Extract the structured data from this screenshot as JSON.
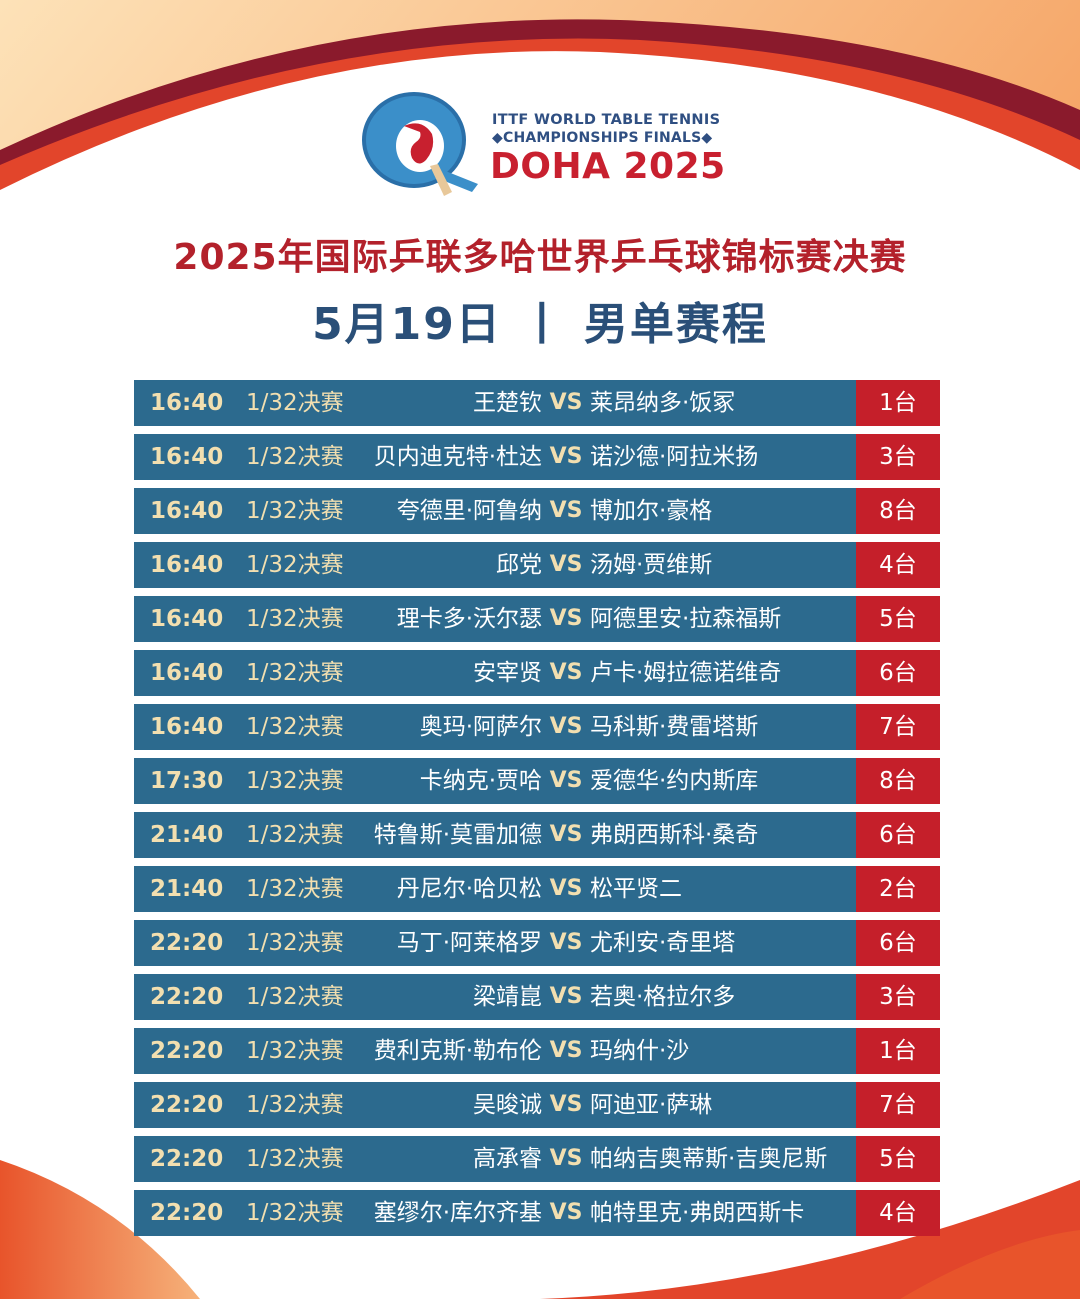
{
  "colors": {
    "accent_red": "#c51f2a",
    "row_blue": "#2c6a8e",
    "title_red": "#b3212b",
    "title_blue": "#2a4f78",
    "gold_text": "#f2dfb0"
  },
  "logo": {
    "icon": "ittf-q-logo-icon",
    "line1": "ITTF WORLD TABLE TENNIS",
    "line2": "◆CHAMPIONSHIPS FINALS◆",
    "line3": "DOHA 2025"
  },
  "title": {
    "line1": "2025年国际乒联多哈世界乒乓球锦标赛决赛",
    "date": "5月19日",
    "separator": "丨",
    "event": "男单赛程"
  },
  "schedule": [
    {
      "time": "16:40",
      "round": "1/32决赛",
      "player1": "王楚钦",
      "vs": "VS",
      "player2": "莱昂纳多·饭冢",
      "table": "1台"
    },
    {
      "time": "16:40",
      "round": "1/32决赛",
      "player1": "贝内迪克特·杜达",
      "vs": "VS",
      "player2": "诺沙德·阿拉米扬",
      "table": "3台"
    },
    {
      "time": "16:40",
      "round": "1/32决赛",
      "player1": "夸德里·阿鲁纳",
      "vs": "VS",
      "player2": "博加尔·豪格",
      "table": "8台"
    },
    {
      "time": "16:40",
      "round": "1/32决赛",
      "player1": "邱党",
      "vs": "VS",
      "player2": "汤姆·贾维斯",
      "table": "4台"
    },
    {
      "time": "16:40",
      "round": "1/32决赛",
      "player1": "理卡多·沃尔瑟",
      "vs": "VS",
      "player2": "阿德里安·拉森福斯",
      "table": "5台"
    },
    {
      "time": "16:40",
      "round": "1/32决赛",
      "player1": "安宰贤",
      "vs": "VS",
      "player2": "卢卡·姆拉德诺维奇",
      "table": "6台"
    },
    {
      "time": "16:40",
      "round": "1/32决赛",
      "player1": "奥玛·阿萨尔",
      "vs": "VS",
      "player2": "马科斯·费雷塔斯",
      "table": "7台"
    },
    {
      "time": "17:30",
      "round": "1/32决赛",
      "player1": "卡纳克·贾哈",
      "vs": "VS",
      "player2": "爱德华·约内斯库",
      "table": "8台"
    },
    {
      "time": "21:40",
      "round": "1/32决赛",
      "player1": "特鲁斯·莫雷加德",
      "vs": "VS",
      "player2": "弗朗西斯科·桑奇",
      "table": "6台"
    },
    {
      "time": "21:40",
      "round": "1/32决赛",
      "player1": "丹尼尔·哈贝松",
      "vs": "VS",
      "player2": "松平贤二",
      "table": "2台"
    },
    {
      "time": "22:20",
      "round": "1/32决赛",
      "player1": "马丁·阿莱格罗",
      "vs": "VS",
      "player2": "尤利安·奇里塔",
      "table": "6台"
    },
    {
      "time": "22:20",
      "round": "1/32决赛",
      "player1": "梁靖崑",
      "vs": "VS",
      "player2": "若奥·格拉尔多",
      "table": "3台"
    },
    {
      "time": "22:20",
      "round": "1/32决赛",
      "player1": "费利克斯·勒布伦",
      "vs": "VS",
      "player2": "玛纳什·沙",
      "table": "1台"
    },
    {
      "time": "22:20",
      "round": "1/32决赛",
      "player1": "吴晙诚",
      "vs": "VS",
      "player2": "阿迪亚·萨琳",
      "table": "7台"
    },
    {
      "time": "22:20",
      "round": "1/32决赛",
      "player1": "高承睿",
      "vs": "VS",
      "player2": "帕纳吉奥蒂斯·吉奥尼斯",
      "table": "5台"
    },
    {
      "time": "22:20",
      "round": "1/32决赛",
      "player1": "塞缪尔·库尔齐基",
      "vs": "VS",
      "player2": "帕特里克·弗朗西斯卡",
      "table": "4台"
    }
  ]
}
